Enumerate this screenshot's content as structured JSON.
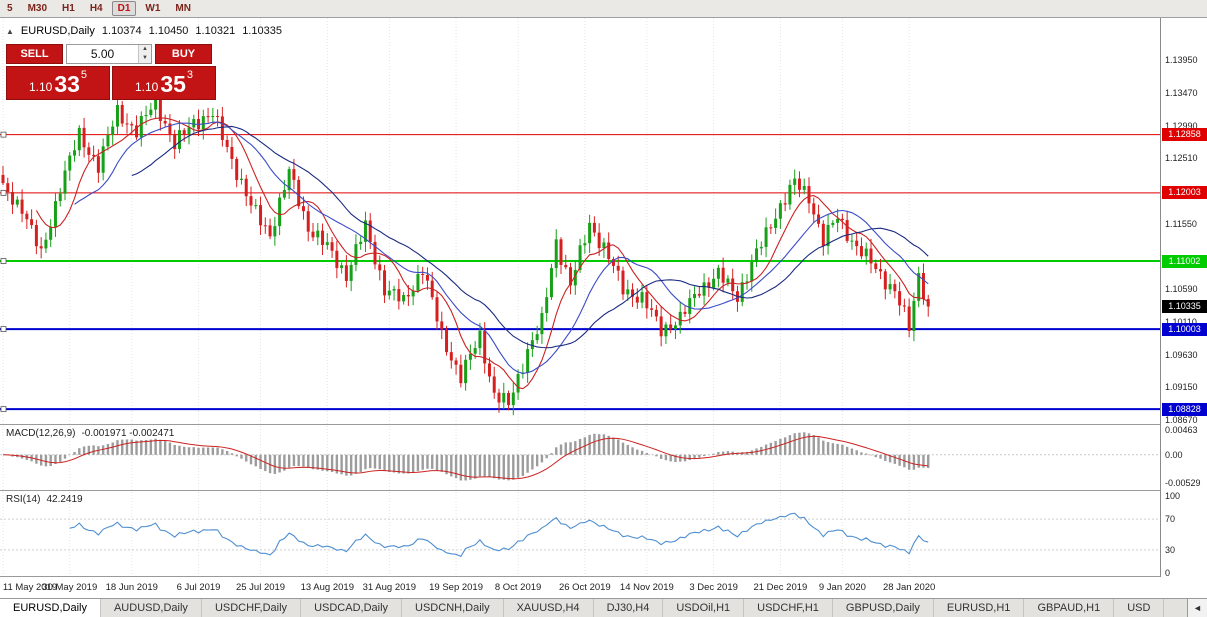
{
  "toolbar": {
    "items": [
      {
        "label": "5",
        "active": false
      },
      {
        "label": "M30",
        "active": false
      },
      {
        "label": "H1",
        "active": false
      },
      {
        "label": "H4",
        "active": false
      },
      {
        "label": "D1",
        "active": true
      },
      {
        "label": "W1",
        "active": false
      },
      {
        "label": "MN",
        "active": false
      }
    ]
  },
  "chart_header": {
    "collapse_icon": "▲",
    "symbol": "EURUSD,Daily",
    "open": "1.10374",
    "high": "1.10450",
    "low": "1.10321",
    "close": "1.10335"
  },
  "trade_panel": {
    "sell_label": "SELL",
    "buy_label": "BUY",
    "volume": "5.00",
    "spin_up": "▲",
    "spin_down": "▼",
    "sell_price_small": "1.10",
    "sell_price_big": "33",
    "sell_price_sup": "5",
    "buy_price_small": "1.10",
    "buy_price_big": "35",
    "buy_price_sup": "3",
    "accent_color": "#c21414"
  },
  "chart_data": {
    "type": "candlestick",
    "symbol": "EURUSD",
    "timeframe": "Daily",
    "candle_count": 195,
    "up_color": "#18a018",
    "down_color": "#d62020",
    "noise_amp": 0.0009,
    "wick_amp": 0.0015,
    "price_axis": {
      "min": 1.0861,
      "max": 1.1457,
      "ticks": [
        "1.13950",
        "1.13470",
        "1.12990",
        "1.12510",
        "1.11550",
        "1.10590",
        "1.10110",
        "1.09630",
        "1.09150",
        "1.08670"
      ]
    },
    "current_price": {
      "label": "1.10335",
      "value": 1.10335,
      "color": "#000000"
    },
    "levels": [
      {
        "value": 1.12858,
        "label": "1.12858",
        "color": "#e00000",
        "width": 1
      },
      {
        "value": 1.12003,
        "label": "1.12003",
        "color": "#e00000",
        "width": 1
      },
      {
        "value": 1.11002,
        "label": "1.11002",
        "color": "#00cc00",
        "width": 2
      },
      {
        "value": 1.10003,
        "label": "1.10003",
        "color": "#0000d0",
        "width": 2
      },
      {
        "value": 1.08828,
        "label": "1.08828",
        "color": "#0000d0",
        "width": 2
      }
    ],
    "close_waypoints": [
      [
        0,
        1.1205
      ],
      [
        4,
        1.118
      ],
      [
        8,
        1.1108
      ],
      [
        12,
        1.121
      ],
      [
        16,
        1.1285
      ],
      [
        20,
        1.124
      ],
      [
        24,
        1.132
      ],
      [
        28,
        1.129
      ],
      [
        32,
        1.1335
      ],
      [
        36,
        1.127
      ],
      [
        40,
        1.1305
      ],
      [
        44,
        1.1315
      ],
      [
        48,
        1.125
      ],
      [
        52,
        1.118
      ],
      [
        56,
        1.114
      ],
      [
        60,
        1.123
      ],
      [
        64,
        1.115
      ],
      [
        68,
        1.112
      ],
      [
        72,
        1.108
      ],
      [
        76,
        1.115
      ],
      [
        80,
        1.106
      ],
      [
        84,
        1.104
      ],
      [
        88,
        1.109
      ],
      [
        92,
        1.099
      ],
      [
        96,
        1.093
      ],
      [
        100,
        1.099
      ],
      [
        103,
        1.0905
      ],
      [
        106,
        1.0888
      ],
      [
        110,
        1.097
      ],
      [
        113,
        1.101
      ],
      [
        116,
        1.113
      ],
      [
        119,
        1.1065
      ],
      [
        123,
        1.1155
      ],
      [
        126,
        1.112
      ],
      [
        130,
        1.106
      ],
      [
        134,
        1.1045
      ],
      [
        138,
        1.1
      ],
      [
        142,
        1.1015
      ],
      [
        146,
        1.106
      ],
      [
        150,
        1.108
      ],
      [
        154,
        1.105
      ],
      [
        158,
        1.111
      ],
      [
        162,
        1.117
      ],
      [
        166,
        1.1215
      ],
      [
        169,
        1.1195
      ],
      [
        172,
        1.113
      ],
      [
        175,
        1.1165
      ],
      [
        179,
        1.112
      ],
      [
        183,
        1.109
      ],
      [
        187,
        1.1055
      ],
      [
        190,
        1.1002
      ],
      [
        192,
        1.1082
      ],
      [
        194,
        1.10335
      ]
    ],
    "moving_averages": [
      {
        "period": 8,
        "color": "#cc2222",
        "width": 1.1
      },
      {
        "period": 16,
        "color": "#3b4cc8",
        "width": 1.1
      },
      {
        "period": 28,
        "color": "#1a2a80",
        "width": 1.1
      }
    ],
    "dates": [
      "11 May 2019",
      "30 May 2019",
      "18 Jun 2019",
      "6 Jul 2019",
      "25 Jul 2019",
      "13 Aug 2019",
      "31 Aug 2019",
      "19 Sep 2019",
      "8 Oct 2019",
      "26 Oct 2019",
      "14 Nov 2019",
      "3 Dec 2019",
      "21 Dec 2019",
      "9 Jan 2020",
      "28 Jan 2020"
    ],
    "date_indices": [
      0,
      14,
      27,
      41,
      54,
      68,
      81,
      95,
      108,
      122,
      135,
      149,
      163,
      176,
      190
    ],
    "macd": {
      "label": "MACD(12,26,9)",
      "values_label": "-0.001971 -0.002471",
      "fast": 12,
      "slow": 26,
      "signal": 9,
      "axis": [
        "0.00463",
        "0.00",
        "-0.00529"
      ],
      "axis_values": [
        0.00463,
        0,
        -0.00529
      ],
      "range": {
        "min": -0.0065,
        "max": 0.0055
      },
      "hist_color": "#9c9c9c",
      "signal_color": "#cc2222"
    },
    "rsi": {
      "label": "RSI(14)",
      "value_label": "42.2419",
      "period": 14,
      "axis": [
        "100",
        "70",
        "30",
        "0"
      ],
      "axis_values": [
        100,
        70,
        30,
        0
      ],
      "levels": [
        70,
        30
      ],
      "color": "#4f8fd0"
    }
  },
  "tabs": {
    "scroll_left": "◄",
    "items": [
      {
        "label": "EURUSD,Daily",
        "active": true
      },
      {
        "label": "AUDUSD,Daily",
        "active": false
      },
      {
        "label": "USDCHF,Daily",
        "active": false
      },
      {
        "label": "USDCAD,Daily",
        "active": false
      },
      {
        "label": "USDCNH,Daily",
        "active": false
      },
      {
        "label": "XAUUSD,H4",
        "active": false
      },
      {
        "label": "DJ30,H4",
        "active": false
      },
      {
        "label": "USDOil,H1",
        "active": false
      },
      {
        "label": "USDCHF,H1",
        "active": false
      },
      {
        "label": "GBPUSD,Daily",
        "active": false
      },
      {
        "label": "EURUSD,H1",
        "active": false
      },
      {
        "label": "GBPAUD,H1",
        "active": false
      },
      {
        "label": "USD",
        "active": false
      }
    ]
  }
}
